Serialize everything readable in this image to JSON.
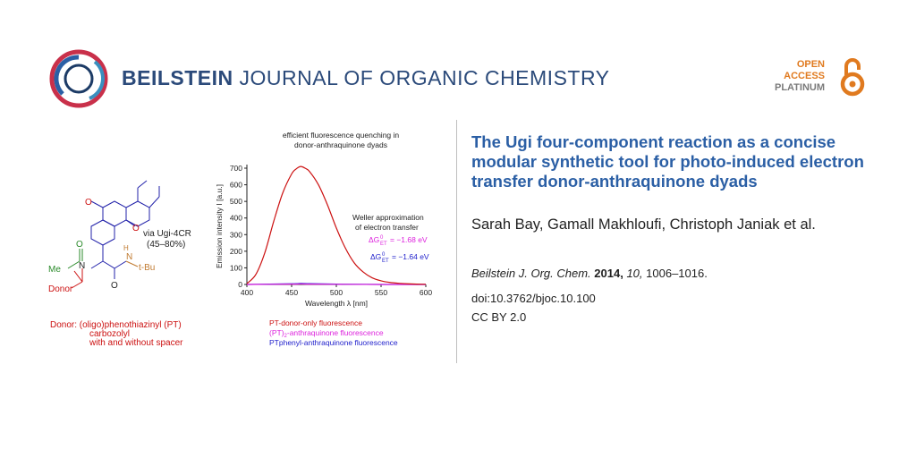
{
  "header": {
    "journal_bold": "BEILSTEIN",
    "journal_rest": " JOURNAL OF ORGANIC CHEMISTRY",
    "oa_open": "OPEN",
    "oa_access": "ACCESS",
    "oa_platinum": "PLATINUM"
  },
  "article": {
    "title": "The Ugi four-component reaction as a concise modular synthetic tool for photo-induced electron transfer donor-anthraquinone dyads",
    "authors": "Sarah Bay, Gamall Makhloufi, Christoph Janiak et al.",
    "journal_abbr": "Beilstein J. Org. Chem.",
    "year": "2014,",
    "volume": "10,",
    "pages": "1006–1016.",
    "doi": "doi:10.3762/bjoc.10.100",
    "license": "CC BY 2.0"
  },
  "graphic": {
    "reaction_label": "via Ugi-4CR",
    "reaction_yield": "(45–80%)",
    "atom_O1": "O",
    "atom_O2": "O",
    "atom_O3": "O",
    "atom_O4": "O",
    "atom_N1": "N",
    "atom_N2": "N",
    "atom_H": "H",
    "me_label": "Me",
    "tbu_label": "t-Bu",
    "donor_label": "Donor",
    "donor_line1": "Donor:  (oligo)phenothiazinyl (PT)",
    "donor_line2": "carbozolyl",
    "donor_line3": "with and without spacer",
    "colors": {
      "donor": "#cc1111",
      "acid": "#2a8a2a",
      "isocyanide": "#c07a30",
      "pt_only": "#cc1111",
      "pt2": "#dd22dd",
      "ptphenyl": "#2222cc"
    }
  },
  "chart_data": {
    "type": "line",
    "title": "efficient fluorescence quenching in donor-anthraquinone dyads",
    "xlabel": "Wavelength λ [nm]",
    "ylabel": "Emission intensity I [a.u.]",
    "xlim": [
      400,
      600
    ],
    "ylim": [
      0,
      700
    ],
    "xticks": [
      "400",
      "450",
      "500",
      "550",
      "600"
    ],
    "yticks": [
      "0",
      "100",
      "200",
      "300",
      "400",
      "500",
      "600",
      "700"
    ],
    "annotation_title_1": "Weller approximation",
    "annotation_title_2": "of electron transfer",
    "delta_g_1": "ΔG",
    "delta_g_1_sup": "0",
    "delta_g_1_sub": "ET",
    "delta_g_1_value": "= −1.68 eV",
    "delta_g_2": "ΔG",
    "delta_g_2_sup": "0",
    "delta_g_2_sub": "ET",
    "delta_g_2_value": "= −1.64 eV",
    "series": [
      {
        "name": "PT-donor-only fluorescence",
        "color": "#cc1111",
        "x": [
          400,
          410,
          420,
          430,
          440,
          450,
          455,
          460,
          465,
          470,
          480,
          490,
          500,
          510,
          520,
          530,
          540,
          550,
          560,
          570,
          580,
          590,
          600
        ],
        "values": [
          5,
          60,
          190,
          380,
          550,
          665,
          695,
          710,
          700,
          680,
          600,
          480,
          340,
          220,
          130,
          75,
          40,
          22,
          12,
          7,
          4,
          2,
          1
        ]
      },
      {
        "name": "(PT)2-anthraquinone fluorescence",
        "color": "#dd22dd",
        "x": [
          400,
          450,
          460,
          470,
          500,
          550,
          600
        ],
        "values": [
          0,
          2,
          3,
          2,
          1,
          0,
          0
        ]
      },
      {
        "name": "PTphenyl-anthraquinone fluorescence",
        "color": "#2222cc",
        "x": [
          400,
          450,
          460,
          470,
          500,
          550,
          600
        ],
        "values": [
          0,
          4,
          6,
          5,
          2,
          0,
          0
        ]
      }
    ],
    "legend_1": "PT-donor-only fluorescence",
    "legend_2_pre": "(PT)",
    "legend_2_sub": "2",
    "legend_2_post": "-anthraquinone fluorescence",
    "legend_3": "PTphenyl-anthraquinone fluorescence"
  }
}
